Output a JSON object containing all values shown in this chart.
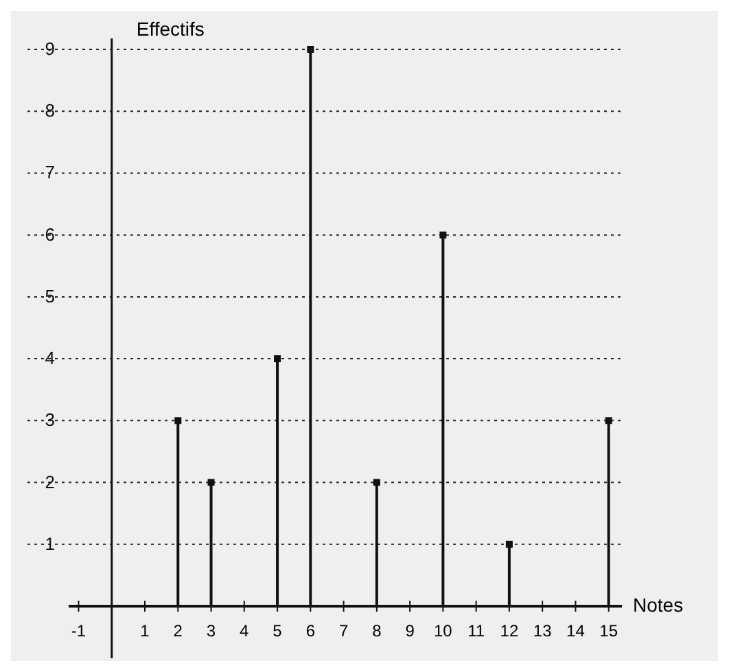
{
  "chart_data": {
    "type": "lollipop",
    "xlabel": "Notes",
    "ylabel": "Effectifs",
    "x": [
      2,
      3,
      5,
      6,
      8,
      10,
      12,
      15
    ],
    "values": [
      3,
      2,
      4,
      9,
      2,
      6,
      1,
      3
    ],
    "color": "#111111",
    "marker": "square",
    "grid": "y",
    "line_style": "dotted",
    "xlim": [
      -1.3,
      15.4
    ],
    "xticks": [
      -1,
      1,
      2,
      3,
      4,
      5,
      6,
      7,
      8,
      9,
      10,
      11,
      12,
      13,
      14,
      15
    ],
    "ylim": [
      0,
      9
    ],
    "yticks": [
      1,
      2,
      3,
      4,
      5,
      6,
      7,
      8,
      9
    ]
  }
}
